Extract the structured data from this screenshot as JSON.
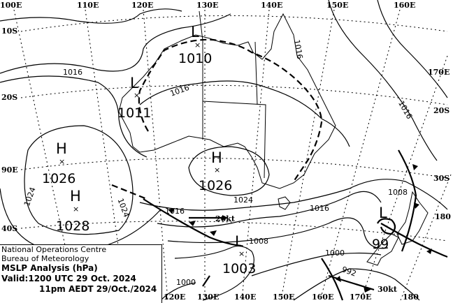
{
  "map": {
    "longitude_labels_top": [
      "100E",
      "110E",
      "120E",
      "130E",
      "140E",
      "150E",
      "160E"
    ],
    "longitude_labels_bottom": [
      "120E",
      "130E",
      "140E",
      "150E",
      "160E",
      "170E",
      "180"
    ],
    "latitude_labels_left": [
      "10S",
      "20S",
      "90E",
      "40S"
    ],
    "latitude_labels_right": [
      "170E",
      "20S",
      "30S",
      "180"
    ],
    "pressure_systems": [
      {
        "type": "H",
        "value": "1026"
      },
      {
        "type": "H",
        "value": "1028"
      },
      {
        "type": "H",
        "value": "1026"
      },
      {
        "type": "L",
        "value": "1010"
      },
      {
        "type": "L",
        "value": "1011"
      },
      {
        "type": "L",
        "value": "1003"
      },
      {
        "type": "L",
        "value": "99"
      }
    ],
    "isobar_labels": [
      "1016",
      "1016",
      "1016",
      "1016",
      "1024",
      "1024",
      "1024",
      "1016",
      "1008",
      "1000",
      "992",
      "1016",
      "1008",
      "1000"
    ],
    "wind_labels": [
      "20kt",
      "30kt"
    ]
  },
  "legend": {
    "line1": "National Operations Centre",
    "line2": "Bureau of Meteorology",
    "title": "MSLP Analysis (hPa)",
    "valid": "Valid:1200 UTC 29 Oct. 2024",
    "local": "11pm AEDT 29/Oct./2024"
  }
}
